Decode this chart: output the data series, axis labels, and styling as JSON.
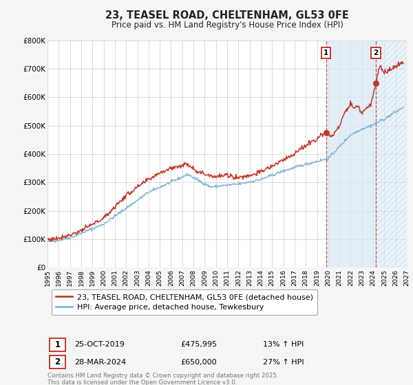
{
  "title": "23, TEASEL ROAD, CHELTENHAM, GL53 0FE",
  "subtitle": "Price paid vs. HM Land Registry's House Price Index (HPI)",
  "hpi_label": "HPI: Average price, detached house, Tewkesbury",
  "property_label": "23, TEASEL ROAD, CHELTENHAM, GL53 0FE (detached house)",
  "footer": "Contains HM Land Registry data © Crown copyright and database right 2025.\nThis data is licensed under the Open Government Licence v3.0.",
  "marker1_date": "25-OCT-2019",
  "marker1_price": "£475,995",
  "marker1_hpi": "13% ↑ HPI",
  "marker1_x": 2019.82,
  "marker1_y": 475995,
  "marker2_date": "28-MAR-2024",
  "marker2_price": "£650,000",
  "marker2_hpi": "27% ↑ HPI",
  "marker2_x": 2024.24,
  "marker2_y": 650000,
  "vline1_x": 2019.82,
  "vline2_x": 2024.24,
  "xmin": 1995,
  "xmax": 2027,
  "ymin": 0,
  "ymax": 800000,
  "yticks": [
    0,
    100000,
    200000,
    300000,
    400000,
    500000,
    600000,
    700000,
    800000
  ],
  "ytick_labels": [
    "£0",
    "£100K",
    "£200K",
    "£300K",
    "£400K",
    "£500K",
    "£600K",
    "£700K",
    "£800K"
  ],
  "xticks": [
    1995,
    1996,
    1997,
    1998,
    1999,
    2000,
    2001,
    2002,
    2003,
    2004,
    2005,
    2006,
    2007,
    2008,
    2009,
    2010,
    2011,
    2012,
    2013,
    2014,
    2015,
    2016,
    2017,
    2018,
    2019,
    2020,
    2021,
    2022,
    2023,
    2024,
    2025,
    2026,
    2027
  ],
  "red_color": "#c0392b",
  "blue_color": "#85b8d4",
  "shade_color": "#d6e8f5",
  "hatch_color": "#c0d8ec",
  "background_color": "#f5f5f5",
  "plot_bg": "#ffffff",
  "title_color": "#222222",
  "grid_color": "#cccccc",
  "legend_border": "#aaaaaa",
  "footer_color": "#777777"
}
